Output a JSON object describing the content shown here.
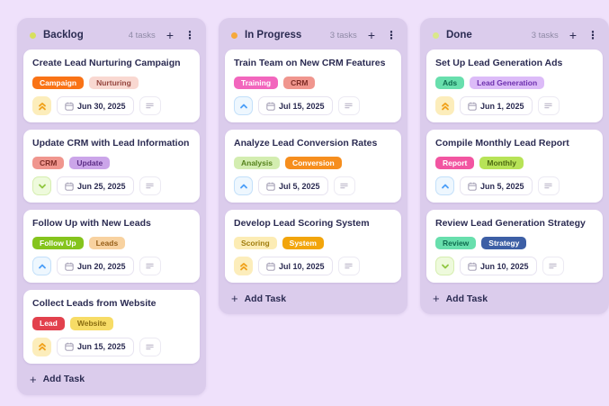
{
  "board": {
    "columns": [
      {
        "name": "Backlog",
        "count": "4 tasks",
        "dot_color": "#d7e05e",
        "add_task": "Add Task",
        "cards": [
          {
            "title": "Create Lead Nurturing Campaign",
            "tags": [
              {
                "label": "Campaign",
                "bg": "#f97316",
                "fg": "#ffffff"
              },
              {
                "label": "Nurturing",
                "bg": "#f9d8d1",
                "fg": "#95463f"
              }
            ],
            "priority": "high",
            "due": "Jun 30, 2025"
          },
          {
            "title": "Update CRM with Lead Information",
            "tags": [
              {
                "label": "CRM",
                "bg": "#f0968e",
                "fg": "#7f2d26"
              },
              {
                "label": "Update",
                "bg": "#cba5e9",
                "fg": "#5c2d86"
              }
            ],
            "priority": "low",
            "due": "Jun 25, 2025"
          },
          {
            "title": "Follow Up with New Leads",
            "tags": [
              {
                "label": "Follow Up",
                "bg": "#85c41d",
                "fg": "#ffffff"
              },
              {
                "label": "Leads",
                "bg": "#f8d2a0",
                "fg": "#97601a"
              }
            ],
            "priority": "medium",
            "due": "Jun 20, 2025"
          },
          {
            "title": "Collect Leads from Website",
            "tags": [
              {
                "label": "Lead",
                "bg": "#e2414d",
                "fg": "#ffffff"
              },
              {
                "label": "Website",
                "bg": "#f7dc66",
                "fg": "#8a6c10"
              }
            ],
            "priority": "high",
            "due": "Jun 15, 2025"
          }
        ]
      },
      {
        "name": "In Progress",
        "count": "3 tasks",
        "dot_color": "#f6a93b",
        "add_task": "Add Task",
        "cards": [
          {
            "title": "Train Team on New CRM Features",
            "tags": [
              {
                "label": "Training",
                "bg": "#f266bd",
                "fg": "#ffffff"
              },
              {
                "label": "CRM",
                "bg": "#f0968e",
                "fg": "#7f2d26"
              }
            ],
            "priority": "medium",
            "due": "Jul 15, 2025"
          },
          {
            "title": "Analyze Lead Conversion Rates",
            "tags": [
              {
                "label": "Analysis",
                "bg": "#d3edb0",
                "fg": "#55821c"
              },
              {
                "label": "Conversion",
                "bg": "#f68e1e",
                "fg": "#ffffff"
              }
            ],
            "priority": "medium",
            "due": "Jul 5, 2025"
          },
          {
            "title": "Develop Lead Scoring System",
            "tags": [
              {
                "label": "Scoring",
                "bg": "#fcecb4",
                "fg": "#a07d0d"
              },
              {
                "label": "System",
                "bg": "#f2a50c",
                "fg": "#ffffff"
              }
            ],
            "priority": "high",
            "due": "Jul 10, 2025"
          }
        ]
      },
      {
        "name": "Done",
        "count": "3 tasks",
        "dot_color": "#d9e88a",
        "add_task": "Add Task",
        "cards": [
          {
            "title": "Set Up Lead Generation Ads",
            "tags": [
              {
                "label": "Ads",
                "bg": "#68dfad",
                "fg": "#0e6b4e"
              },
              {
                "label": "Lead Generation",
                "bg": "#dcbbf8",
                "fg": "#6d2fae"
              }
            ],
            "priority": "high",
            "due": "Jun 1, 2025"
          },
          {
            "title": "Compile Monthly Lead Report",
            "tags": [
              {
                "label": "Report",
                "bg": "#f255a1",
                "fg": "#ffffff"
              },
              {
                "label": "Monthly",
                "bg": "#b7e357",
                "fg": "#4e6b13"
              }
            ],
            "priority": "medium",
            "due": "Jun 5, 2025"
          },
          {
            "title": "Review Lead Generation Strategy",
            "tags": [
              {
                "label": "Review",
                "bg": "#68dfad",
                "fg": "#0e6b4e"
              },
              {
                "label": "Strategy",
                "bg": "#3d5fa5",
                "fg": "#ffffff"
              }
            ],
            "priority": "low",
            "due": "Jun 10, 2025"
          }
        ]
      }
    ]
  },
  "header_actions": {
    "add_label": "+",
    "menu_label": "⋮"
  },
  "priority_styles": {
    "high": {
      "bg": "#fcedbb",
      "color": "#f0a11a",
      "border": "",
      "glyph": "chevrons-up"
    },
    "medium": {
      "bg": "#eef7fe",
      "color": "#4a9df8",
      "border": "#c3e0fa",
      "glyph": "chevron-up"
    },
    "low": {
      "bg": "#eefadc",
      "color": "#8fc63f",
      "border": "#d6eeb0",
      "glyph": "chevron-down"
    }
  }
}
